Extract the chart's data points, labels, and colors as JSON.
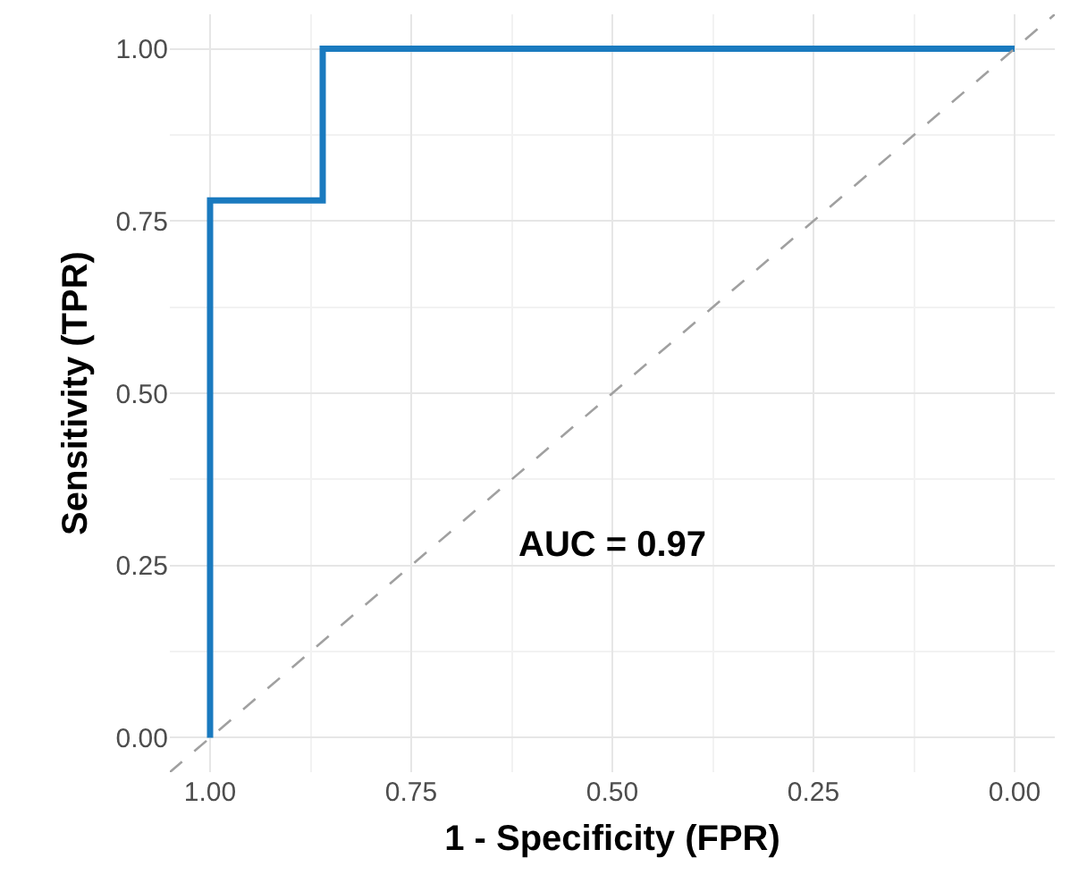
{
  "chart_data": {
    "type": "line",
    "xlabel": "1 - Specificity (FPR)",
    "ylabel": "Sensitivity (TPR)",
    "xlim": [
      1.05,
      -0.05
    ],
    "ylim": [
      -0.05,
      1.05
    ],
    "xticks": [
      {
        "value": 1,
        "label": "1.00"
      },
      {
        "value": 0.75,
        "label": "0.75"
      },
      {
        "value": 0.5,
        "label": "0.50"
      },
      {
        "value": 0.25,
        "label": "0.25"
      },
      {
        "value": 0,
        "label": "0.00"
      }
    ],
    "yticks": [
      {
        "value": 0,
        "label": "0.00"
      },
      {
        "value": 0.25,
        "label": "0.25"
      },
      {
        "value": 0.5,
        "label": "0.50"
      },
      {
        "value": 0.75,
        "label": "0.75"
      },
      {
        "value": 1,
        "label": "1.00"
      }
    ],
    "grid": true,
    "marker": "none",
    "series": [
      {
        "color": "#1a7abf",
        "line_style": "solid",
        "x": [
          1,
          1,
          0.86,
          0.86,
          0
        ],
        "values": [
          0,
          0.78,
          0.78,
          1,
          1
        ]
      },
      {
        "color": "#a0a0a0",
        "line_style": "dashed",
        "x": [
          1.05,
          -0.05
        ],
        "values": [
          -0.05,
          1.05
        ]
      }
    ],
    "annotations": [
      "AUC = 0.97"
    ]
  }
}
